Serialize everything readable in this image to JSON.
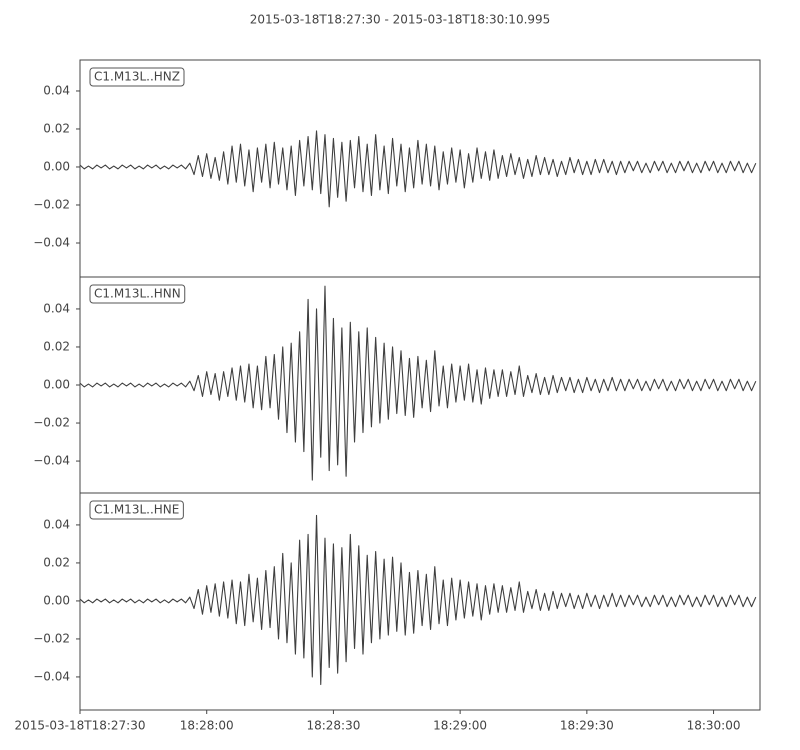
{
  "title": "2015-03-18T18:27:30  -  2015-03-18T18:30:10.995",
  "chart_data": [
    {
      "type": "line",
      "label": "C1.M13L..HNZ",
      "color": "#3f3f3f",
      "xlim": [
        0,
        160.995
      ],
      "ylim": [
        -0.0579,
        0.0563
      ],
      "yticks": [
        {
          "value": -0.04,
          "label": "−0.04"
        },
        {
          "value": -0.02,
          "label": "−0.02"
        },
        {
          "value": 0,
          "label": "0.00"
        },
        0.02,
        0.04
      ],
      "x": [
        0,
        1,
        2,
        3,
        4,
        5,
        6,
        7,
        8,
        9,
        10,
        11,
        12,
        13,
        14,
        15,
        16,
        17,
        18,
        19,
        20,
        21,
        22,
        23,
        24,
        25,
        26,
        27,
        28,
        29,
        30,
        31,
        32,
        33,
        34,
        35,
        36,
        37,
        38,
        39,
        40,
        41,
        42,
        43,
        44,
        45,
        46,
        47,
        48,
        49,
        50,
        51,
        52,
        53,
        54,
        55,
        56,
        57,
        58,
        59,
        60,
        61,
        62,
        63,
        64,
        65,
        66,
        67,
        68,
        69,
        70,
        71,
        72,
        73,
        74,
        75,
        76,
        77,
        78,
        79,
        80,
        81,
        82,
        83,
        84,
        85,
        86,
        87,
        88,
        89,
        90,
        91,
        92,
        93,
        94,
        95,
        96,
        97,
        98,
        99,
        100,
        101,
        102,
        103,
        104,
        105,
        106,
        107,
        108,
        109,
        110,
        111,
        112,
        113,
        114,
        115,
        116,
        117,
        118,
        119,
        120,
        121,
        122,
        123,
        124,
        125,
        126,
        127,
        128,
        129,
        130,
        131,
        132,
        133,
        134,
        135,
        136,
        137,
        138,
        139,
        140,
        141,
        142,
        143,
        144,
        145,
        146,
        147,
        148,
        149,
        150,
        151,
        152,
        153,
        154,
        155,
        156,
        157,
        158,
        159,
        160
      ],
      "values": [
        0.001,
        -0.001,
        0.0005,
        -0.001,
        0.001,
        -0.0005,
        0.001,
        -0.001,
        0.0005,
        -0.001,
        0.001,
        -0.0005,
        0.001,
        -0.001,
        0.0005,
        -0.001,
        0.001,
        -0.0005,
        0.001,
        -0.001,
        0.0005,
        -0.001,
        0.001,
        -0.0005,
        0.001,
        -0.001,
        0.002,
        -0.004,
        0.006,
        -0.005,
        0.007,
        -0.006,
        0.005,
        -0.007,
        0.008,
        -0.009,
        0.011,
        -0.008,
        0.012,
        -0.01,
        0.009,
        -0.013,
        0.01,
        -0.008,
        0.012,
        -0.011,
        0.013,
        -0.009,
        0.01,
        -0.012,
        0.011,
        -0.015,
        0.014,
        -0.01,
        0.016,
        -0.012,
        0.019,
        -0.014,
        0.017,
        -0.021,
        0.015,
        -0.016,
        0.013,
        -0.018,
        0.014,
        -0.011,
        0.016,
        -0.013,
        0.012,
        -0.015,
        0.017,
        -0.012,
        0.011,
        -0.014,
        0.015,
        -0.01,
        0.012,
        -0.013,
        0.01,
        -0.011,
        0.014,
        -0.009,
        0.012,
        -0.01,
        0.011,
        -0.012,
        0.008,
        -0.009,
        0.01,
        -0.008,
        0.009,
        -0.011,
        0.007,
        -0.008,
        0.01,
        -0.006,
        0.008,
        -0.007,
        0.009,
        -0.006,
        0.006,
        -0.005,
        0.007,
        -0.004,
        0.005,
        -0.006,
        0.004,
        -0.005,
        0.006,
        -0.004,
        0.005,
        -0.004,
        0.004,
        -0.005,
        0.003,
        -0.004,
        0.005,
        -0.003,
        0.004,
        -0.004,
        0.003,
        -0.004,
        0.004,
        -0.003,
        0.004,
        -0.003,
        0.003,
        -0.004,
        0.003,
        -0.003,
        0.003,
        -0.002,
        0.003,
        -0.003,
        0.002,
        -0.003,
        0.003,
        -0.002,
        0.003,
        -0.003,
        0.002,
        -0.003,
        0.003,
        -0.002,
        0.003,
        -0.003,
        0.002,
        -0.003,
        0.003,
        -0.002,
        0.003,
        -0.003,
        0.002,
        -0.003,
        0.003,
        -0.002,
        0.003,
        -0.003,
        0.002,
        -0.003,
        0.002
      ]
    },
    {
      "type": "line",
      "label": "C1.M13L..HNN",
      "color": "#3f3f3f",
      "xlim": [
        0,
        160.995
      ],
      "ylim": [
        -0.0568,
        0.0568
      ],
      "yticks": [
        {
          "value": -0.04,
          "label": "−0.04"
        },
        {
          "value": -0.02,
          "label": "−0.02"
        },
        {
          "value": 0,
          "label": "0.00"
        },
        0.02,
        0.04
      ],
      "x": [
        0,
        1,
        2,
        3,
        4,
        5,
        6,
        7,
        8,
        9,
        10,
        11,
        12,
        13,
        14,
        15,
        16,
        17,
        18,
        19,
        20,
        21,
        22,
        23,
        24,
        25,
        26,
        27,
        28,
        29,
        30,
        31,
        32,
        33,
        34,
        35,
        36,
        37,
        38,
        39,
        40,
        41,
        42,
        43,
        44,
        45,
        46,
        47,
        48,
        49,
        50,
        51,
        52,
        53,
        54,
        55,
        56,
        57,
        58,
        59,
        60,
        61,
        62,
        63,
        64,
        65,
        66,
        67,
        68,
        69,
        70,
        71,
        72,
        73,
        74,
        75,
        76,
        77,
        78,
        79,
        80,
        81,
        82,
        83,
        84,
        85,
        86,
        87,
        88,
        89,
        90,
        91,
        92,
        93,
        94,
        95,
        96,
        97,
        98,
        99,
        100,
        101,
        102,
        103,
        104,
        105,
        106,
        107,
        108,
        109,
        110,
        111,
        112,
        113,
        114,
        115,
        116,
        117,
        118,
        119,
        120,
        121,
        122,
        123,
        124,
        125,
        126,
        127,
        128,
        129,
        130,
        131,
        132,
        133,
        134,
        135,
        136,
        137,
        138,
        139,
        140,
        141,
        142,
        143,
        144,
        145,
        146,
        147,
        148,
        149,
        150,
        151,
        152,
        153,
        154,
        155,
        156,
        157,
        158,
        159,
        160
      ],
      "values": [
        0.001,
        -0.001,
        0.0005,
        -0.001,
        0.001,
        -0.0005,
        0.001,
        -0.001,
        0.0005,
        -0.001,
        0.001,
        -0.0005,
        0.001,
        -0.001,
        0.0005,
        -0.001,
        0.001,
        -0.0005,
        0.001,
        -0.001,
        0.0005,
        -0.001,
        0.001,
        -0.0005,
        0.001,
        -0.001,
        0.002,
        -0.003,
        0.005,
        -0.006,
        0.007,
        -0.005,
        0.006,
        -0.008,
        0.007,
        -0.006,
        0.009,
        -0.008,
        0.01,
        -0.009,
        0.011,
        -0.012,
        0.01,
        -0.013,
        0.015,
        -0.012,
        0.016,
        -0.018,
        0.02,
        -0.025,
        0.022,
        -0.03,
        0.028,
        -0.035,
        0.045,
        -0.05,
        0.04,
        -0.038,
        0.052,
        -0.045,
        0.035,
        -0.042,
        0.03,
        -0.048,
        0.033,
        -0.03,
        0.028,
        -0.025,
        0.03,
        -0.022,
        0.025,
        -0.02,
        0.022,
        -0.018,
        0.02,
        -0.015,
        0.018,
        -0.016,
        0.014,
        -0.017,
        0.015,
        -0.012,
        0.013,
        -0.014,
        0.018,
        -0.011,
        0.01,
        -0.012,
        0.011,
        -0.009,
        0.01,
        -0.008,
        0.011,
        -0.009,
        0.008,
        -0.01,
        0.009,
        -0.007,
        0.008,
        -0.006,
        0.008,
        -0.006,
        0.007,
        -0.005,
        0.01,
        -0.006,
        0.005,
        -0.004,
        0.006,
        -0.005,
        0.004,
        -0.005,
        0.005,
        -0.004,
        0.004,
        -0.003,
        0.004,
        -0.004,
        0.003,
        -0.004,
        0.004,
        -0.003,
        0.003,
        -0.004,
        0.003,
        -0.003,
        0.004,
        -0.003,
        0.003,
        -0.003,
        0.003,
        -0.002,
        0.003,
        -0.003,
        0.002,
        -0.003,
        0.003,
        -0.002,
        0.003,
        -0.003,
        0.002,
        -0.003,
        0.003,
        -0.002,
        0.003,
        -0.003,
        0.002,
        -0.003,
        0.003,
        -0.002,
        0.003,
        -0.003,
        0.002,
        -0.003,
        0.003,
        -0.002,
        0.003,
        -0.003,
        0.002,
        -0.003,
        0.002
      ]
    },
    {
      "type": "line",
      "label": "C1.M13L..HNE",
      "color": "#3f3f3f",
      "xlim": [
        0,
        160.995
      ],
      "ylim": [
        -0.0574,
        0.0568
      ],
      "yticks": [
        {
          "value": -0.04,
          "label": "−0.04"
        },
        {
          "value": -0.02,
          "label": "−0.02"
        },
        {
          "value": 0,
          "label": "0.00"
        },
        0.02,
        0.04
      ],
      "xticks": [
        {
          "value": 0,
          "label": "2015-03-18T18:27:30"
        },
        {
          "value": 30,
          "label": "18:28:00"
        },
        {
          "value": 60,
          "label": "18:28:30"
        },
        {
          "value": 90,
          "label": "18:29:00"
        },
        {
          "value": 120,
          "label": "18:29:30"
        },
        {
          "value": 150,
          "label": "18:30:00"
        }
      ],
      "x": [
        0,
        1,
        2,
        3,
        4,
        5,
        6,
        7,
        8,
        9,
        10,
        11,
        12,
        13,
        14,
        15,
        16,
        17,
        18,
        19,
        20,
        21,
        22,
        23,
        24,
        25,
        26,
        27,
        28,
        29,
        30,
        31,
        32,
        33,
        34,
        35,
        36,
        37,
        38,
        39,
        40,
        41,
        42,
        43,
        44,
        45,
        46,
        47,
        48,
        49,
        50,
        51,
        52,
        53,
        54,
        55,
        56,
        57,
        58,
        59,
        60,
        61,
        62,
        63,
        64,
        65,
        66,
        67,
        68,
        69,
        70,
        71,
        72,
        73,
        74,
        75,
        76,
        77,
        78,
        79,
        80,
        81,
        82,
        83,
        84,
        85,
        86,
        87,
        88,
        89,
        90,
        91,
        92,
        93,
        94,
        95,
        96,
        97,
        98,
        99,
        100,
        101,
        102,
        103,
        104,
        105,
        106,
        107,
        108,
        109,
        110,
        111,
        112,
        113,
        114,
        115,
        116,
        117,
        118,
        119,
        120,
        121,
        122,
        123,
        124,
        125,
        126,
        127,
        128,
        129,
        130,
        131,
        132,
        133,
        134,
        135,
        136,
        137,
        138,
        139,
        140,
        141,
        142,
        143,
        144,
        145,
        146,
        147,
        148,
        149,
        150,
        151,
        152,
        153,
        154,
        155,
        156,
        157,
        158,
        159,
        160
      ],
      "values": [
        0.001,
        -0.001,
        0.0005,
        -0.001,
        0.001,
        -0.0005,
        0.001,
        -0.001,
        0.0005,
        -0.001,
        0.001,
        -0.0005,
        0.001,
        -0.001,
        0.0005,
        -0.001,
        0.001,
        -0.0005,
        0.001,
        -0.001,
        0.0005,
        -0.001,
        0.001,
        -0.0005,
        0.001,
        -0.001,
        0.002,
        -0.004,
        0.006,
        -0.007,
        0.008,
        -0.006,
        0.009,
        -0.008,
        0.01,
        -0.009,
        0.011,
        -0.012,
        0.01,
        -0.013,
        0.014,
        -0.011,
        0.012,
        -0.015,
        0.016,
        -0.014,
        0.018,
        -0.02,
        0.025,
        -0.022,
        0.02,
        -0.028,
        0.032,
        -0.03,
        0.035,
        -0.04,
        0.045,
        -0.044,
        0.033,
        -0.035,
        0.03,
        -0.038,
        0.028,
        -0.032,
        0.035,
        -0.025,
        0.029,
        -0.028,
        0.024,
        -0.022,
        0.026,
        -0.02,
        0.022,
        -0.018,
        0.023,
        -0.016,
        0.02,
        -0.018,
        0.015,
        -0.017,
        0.016,
        -0.013,
        0.014,
        -0.015,
        0.018,
        -0.012,
        0.011,
        -0.013,
        0.012,
        -0.01,
        0.011,
        -0.009,
        0.01,
        -0.008,
        0.009,
        -0.01,
        0.008,
        -0.007,
        0.009,
        -0.006,
        0.008,
        -0.006,
        0.007,
        -0.005,
        0.01,
        -0.006,
        0.005,
        -0.004,
        0.006,
        -0.005,
        0.004,
        -0.005,
        0.005,
        -0.004,
        0.004,
        -0.003,
        0.004,
        -0.004,
        0.003,
        -0.004,
        0.004,
        -0.003,
        0.003,
        -0.004,
        0.003,
        -0.003,
        0.004,
        -0.003,
        0.003,
        -0.003,
        0.003,
        -0.002,
        0.003,
        -0.003,
        0.002,
        -0.003,
        0.003,
        -0.002,
        0.003,
        -0.003,
        0.002,
        -0.003,
        0.003,
        -0.002,
        0.003,
        -0.003,
        0.002,
        -0.003,
        0.003,
        -0.002,
        0.003,
        -0.003,
        0.002,
        -0.003,
        0.003,
        -0.002,
        0.003,
        -0.003,
        0.002,
        -0.003,
        0.002
      ]
    }
  ]
}
